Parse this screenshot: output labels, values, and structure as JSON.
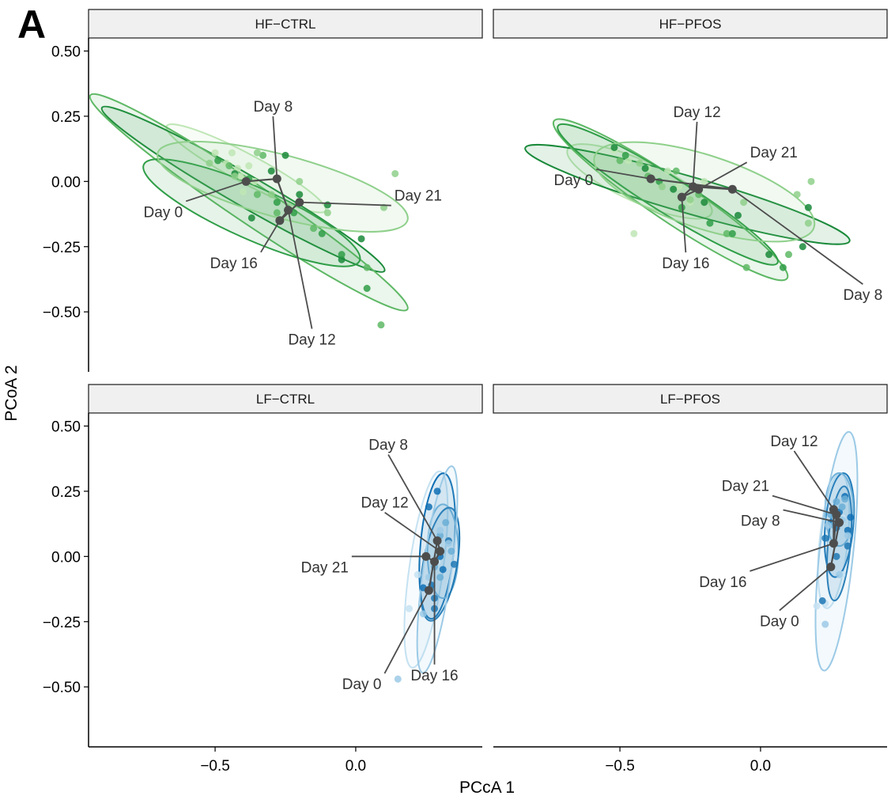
{
  "figure": {
    "panel_letter": "A",
    "xlabel": "PCcA 1",
    "ylabel": "PCoA 2"
  },
  "chart_data": {
    "type": "scatter",
    "title": "",
    "xlabel": "PCcA 1",
    "ylabel": "PCoA 2",
    "xlim": [
      -0.95,
      0.45
    ],
    "ylim": [
      -0.73,
      0.55
    ],
    "x_ticks": [
      -0.5,
      0.0
    ],
    "x_tick_labels": [
      "−0.5",
      "0.0"
    ],
    "y_ticks": [
      0.5,
      0.25,
      0.0,
      -0.25,
      -0.5
    ],
    "y_tick_labels": [
      "0.50",
      "0.25",
      "0.00",
      "−0.25",
      "−0.50"
    ],
    "grid": false,
    "legend": "none",
    "facets": [
      {
        "name": "HF-CTRL",
        "palette": "green",
        "days": [
          {
            "day": "Day 0",
            "centroid": [
              -0.39,
              0.0
            ],
            "points": [
              [
                -0.5,
                0.11
              ],
              [
                -0.44,
                0.11
              ],
              [
                -0.42,
                0.05
              ],
              [
                -0.38,
                0.06
              ],
              [
                -0.46,
                0.07
              ],
              [
                -0.41,
                0.02
              ],
              [
                -0.4,
                -0.04
              ],
              [
                -0.36,
                0.0
              ]
            ],
            "ellipse": {
              "cx": -0.39,
              "cy": 0.05,
              "rx": 0.32,
              "ry": 0.055,
              "angle": 28
            }
          },
          {
            "day": "Day 8",
            "centroid": [
              -0.28,
              0.01
            ],
            "points": [
              [
                -0.43,
                0.03
              ],
              [
                -0.37,
                -0.14
              ],
              [
                -0.3,
                0.04
              ],
              [
                -0.25,
                0.1
              ],
              [
                -0.2,
                -0.05
              ],
              [
                -0.1,
                -0.09
              ],
              [
                0.02,
                -0.22
              ],
              [
                -0.05,
                -0.3
              ]
            ],
            "ellipse": {
              "cx": -0.4,
              "cy": -0.03,
              "rx": 0.58,
              "ry": 0.06,
              "angle": 30
            }
          },
          {
            "day": "Day 12",
            "centroid": [
              -0.24,
              -0.11
            ],
            "points": [
              [
                -0.45,
                0.06
              ],
              [
                -0.35,
                -0.05
              ],
              [
                -0.28,
                -0.12
              ],
              [
                -0.15,
                -0.18
              ],
              [
                0.04,
                -0.33
              ],
              [
                0.09,
                -0.55
              ],
              [
                -0.33,
                0.1
              ]
            ],
            "ellipse": {
              "cx": -0.38,
              "cy": -0.08,
              "rx": 0.68,
              "ry": 0.075,
              "angle": 34
            }
          },
          {
            "day": "Day 16",
            "centroid": [
              -0.27,
              -0.15
            ],
            "points": [
              [
                -0.49,
                0.08
              ],
              [
                -0.38,
                0.01
              ],
              [
                -0.28,
                -0.08
              ],
              [
                -0.22,
                -0.12
              ],
              [
                -0.12,
                -0.2
              ],
              [
                -0.05,
                -0.28
              ],
              [
                0.04,
                -0.41
              ]
            ],
            "ellipse": {
              "cx": -0.37,
              "cy": -0.12,
              "rx": 0.42,
              "ry": 0.1,
              "angle": 24
            }
          },
          {
            "day": "Day 21",
            "centroid": [
              -0.2,
              -0.08
            ],
            "points": [
              [
                -0.52,
                0.07
              ],
              [
                -0.43,
                0.02
              ],
              [
                -0.35,
                0.11
              ],
              [
                -0.3,
                -0.05
              ],
              [
                -0.2,
                0.0
              ],
              [
                -0.1,
                -0.12
              ],
              [
                0.14,
                0.03
              ],
              [
                0.1,
                -0.1
              ]
            ],
            "ellipse": {
              "cx": -0.26,
              "cy": -0.02,
              "rx": 0.46,
              "ry": 0.12,
              "angle": 15
            }
          }
        ]
      },
      {
        "name": "HF-PFOS",
        "palette": "green",
        "days": [
          {
            "day": "Day 0",
            "centroid": [
              -0.39,
              0.01
            ],
            "points": [
              [
                -0.52,
                0.12
              ],
              [
                -0.47,
                0.08
              ],
              [
                -0.4,
                0.05
              ],
              [
                -0.33,
                0.04
              ],
              [
                -0.29,
                -0.02
              ],
              [
                -0.25,
                -0.08
              ],
              [
                -0.2,
                0.0
              ],
              [
                -0.45,
                -0.2
              ]
            ],
            "ellipse": {
              "cx": -0.43,
              "cy": 0.0,
              "rx": 0.28,
              "ry": 0.08,
              "angle": 24
            }
          },
          {
            "day": "Day 8",
            "centroid": [
              -0.1,
              -0.03
            ],
            "points": [
              [
                -0.52,
                0.13
              ],
              [
                -0.41,
                0.05
              ],
              [
                -0.31,
                -0.03
              ],
              [
                -0.2,
                -0.08
              ],
              [
                -0.08,
                -0.13
              ],
              [
                0.03,
                -0.28
              ],
              [
                0.15,
                -0.25
              ],
              [
                0.17,
                -0.1
              ]
            ],
            "ellipse": {
              "cx": -0.26,
              "cy": -0.05,
              "rx": 0.6,
              "ry": 0.07,
              "angle": 16
            }
          },
          {
            "day": "Day 12",
            "centroid": [
              -0.24,
              -0.02
            ],
            "points": [
              [
                -0.5,
                0.08
              ],
              [
                -0.4,
                0.02
              ],
              [
                -0.3,
                0.04
              ],
              [
                -0.22,
                -0.05
              ],
              [
                -0.12,
                -0.2
              ],
              [
                -0.05,
                -0.33
              ],
              [
                0.1,
                -0.28
              ]
            ],
            "ellipse": {
              "cx": -0.32,
              "cy": -0.07,
              "rx": 0.5,
              "ry": 0.08,
              "angle": 34
            }
          },
          {
            "day": "Day 16",
            "centroid": [
              -0.28,
              -0.06
            ],
            "points": [
              [
                -0.48,
                0.1
              ],
              [
                -0.36,
                0.0
              ],
              [
                -0.28,
                -0.1
              ],
              [
                -0.18,
                -0.16
              ],
              [
                -0.1,
                -0.2
              ],
              [
                0.08,
                -0.33
              ]
            ],
            "ellipse": {
              "cx": -0.33,
              "cy": -0.05,
              "rx": 0.46,
              "ry": 0.07,
              "angle": 32
            }
          },
          {
            "day": "Day 21",
            "centroid": [
              -0.22,
              -0.03
            ],
            "points": [
              [
                -0.43,
                0.07
              ],
              [
                -0.35,
                -0.02
              ],
              [
                -0.25,
                -0.07
              ],
              [
                -0.06,
                -0.08
              ],
              [
                0.13,
                -0.05
              ],
              [
                0.17,
                -0.16
              ],
              [
                0.18,
                0.0
              ]
            ],
            "ellipse": {
              "cx": -0.2,
              "cy": -0.04,
              "rx": 0.41,
              "ry": 0.14,
              "angle": 18
            }
          }
        ]
      },
      {
        "name": "LF-CTRL",
        "palette": "blue",
        "days": [
          {
            "day": "Day 0",
            "centroid": [
              0.26,
              -0.13
            ],
            "points": [
              [
                0.19,
                -0.2
              ],
              [
                0.22,
                -0.07
              ],
              [
                0.26,
                -0.13
              ],
              [
                0.29,
                -0.02
              ],
              [
                0.3,
                0.02
              ]
            ],
            "ellipse": {
              "cx": 0.25,
              "cy": -0.05,
              "rx": 0.06,
              "ry": 0.38,
              "angle": 8
            }
          },
          {
            "day": "Day 8",
            "centroid": [
              0.29,
              0.06
            ],
            "points": [
              [
                0.26,
                0.19
              ],
              [
                0.29,
                0.25
              ],
              [
                0.3,
                0.0
              ],
              [
                0.31,
                -0.05
              ],
              [
                0.24,
                -0.12
              ]
            ],
            "ellipse": {
              "cx": 0.29,
              "cy": 0.04,
              "rx": 0.06,
              "ry": 0.28,
              "angle": 5
            }
          },
          {
            "day": "Day 12",
            "centroid": [
              0.3,
              0.02
            ],
            "points": [
              [
                0.32,
                0.13
              ],
              [
                0.3,
                0.08
              ],
              [
                0.28,
                -0.04
              ],
              [
                0.3,
                -0.08
              ],
              [
                0.34,
                0.02
              ]
            ],
            "ellipse": {
              "cx": 0.31,
              "cy": 0.02,
              "rx": 0.055,
              "ry": 0.18,
              "angle": 0
            }
          },
          {
            "day": "Day 16",
            "centroid": [
              0.28,
              -0.02
            ],
            "points": [
              [
                0.28,
                -0.2
              ],
              [
                0.27,
                -0.11
              ],
              [
                0.33,
                0.06
              ],
              [
                0.35,
                -0.03
              ],
              [
                0.28,
                -0.16
              ]
            ],
            "ellipse": {
              "cx": 0.3,
              "cy": -0.03,
              "rx": 0.06,
              "ry": 0.22,
              "angle": 10
            }
          },
          {
            "day": "Day 21",
            "centroid": [
              0.25,
              0.0
            ],
            "points": [
              [
                0.15,
                -0.47
              ],
              [
                0.24,
                -0.22
              ],
              [
                0.26,
                -0.08
              ],
              [
                0.3,
                0.1
              ],
              [
                0.33,
                0.05
              ]
            ],
            "ellipse": {
              "cx": 0.29,
              "cy": -0.05,
              "rx": 0.05,
              "ry": 0.4,
              "angle": 8
            }
          }
        ]
      },
      {
        "name": "LF-PFOS",
        "palette": "blue",
        "days": [
          {
            "day": "Day 0",
            "centroid": [
              0.25,
              -0.04
            ],
            "points": [
              [
                0.2,
                -0.19
              ],
              [
                0.23,
                -0.18
              ],
              [
                0.25,
                0.05
              ],
              [
                0.29,
                0.15
              ],
              [
                0.29,
                -0.07
              ]
            ],
            "ellipse": {
              "cx": 0.26,
              "cy": 0.06,
              "rx": 0.05,
              "ry": 0.26,
              "angle": 6
            }
          },
          {
            "day": "Day 8",
            "centroid": [
              0.28,
              0.13
            ],
            "points": [
              [
                0.25,
                0.13
              ],
              [
                0.28,
                0.17
              ],
              [
                0.3,
                0.23
              ],
              [
                0.31,
                0.1
              ],
              [
                0.32,
                0.15
              ]
            ],
            "ellipse": {
              "cx": 0.28,
              "cy": 0.12,
              "rx": 0.05,
              "ry": 0.2,
              "angle": 5
            }
          },
          {
            "day": "Day 12",
            "centroid": [
              0.26,
              0.18
            ],
            "points": [
              [
                0.27,
                0.21
              ],
              [
                0.3,
                0.22
              ],
              [
                0.25,
                0.16
              ],
              [
                0.29,
                0.19
              ],
              [
                0.26,
                0.12
              ]
            ],
            "ellipse": {
              "cx": 0.28,
              "cy": 0.18,
              "rx": 0.05,
              "ry": 0.14,
              "angle": 0
            }
          },
          {
            "day": "Day 16",
            "centroid": [
              0.26,
              0.05
            ],
            "points": [
              [
                0.23,
                0.07
              ],
              [
                0.27,
                0.0
              ],
              [
                0.27,
                0.11
              ],
              [
                0.31,
                0.04
              ],
              [
                0.22,
                -0.17
              ]
            ],
            "ellipse": {
              "cx": 0.28,
              "cy": 0.05,
              "rx": 0.04,
              "ry": 0.22,
              "angle": 5
            }
          },
          {
            "day": "Day 21",
            "centroid": [
              0.27,
              0.16
            ],
            "points": [
              [
                0.23,
                -0.26
              ],
              [
                0.24,
                0.12
              ],
              [
                0.29,
                0.14
              ],
              [
                0.31,
                0.08
              ],
              [
                0.28,
                -0.07
              ]
            ],
            "ellipse": {
              "cx": 0.27,
              "cy": 0.02,
              "rx": 0.06,
              "ry": 0.46,
              "angle": 6
            }
          }
        ]
      }
    ]
  },
  "colors": {
    "green_days": [
      "#bfe6b5",
      "#1a8a3a",
      "#5eb865",
      "#2f9e47",
      "#8fd08b"
    ],
    "blue_days": [
      "#c5e2f2",
      "#1070b4",
      "#6aaed6",
      "#1f78b4",
      "#9ccae6"
    ],
    "centroid": "#4d4d4d",
    "strip_fill": "#f0f0f0",
    "axis": "#000000"
  }
}
